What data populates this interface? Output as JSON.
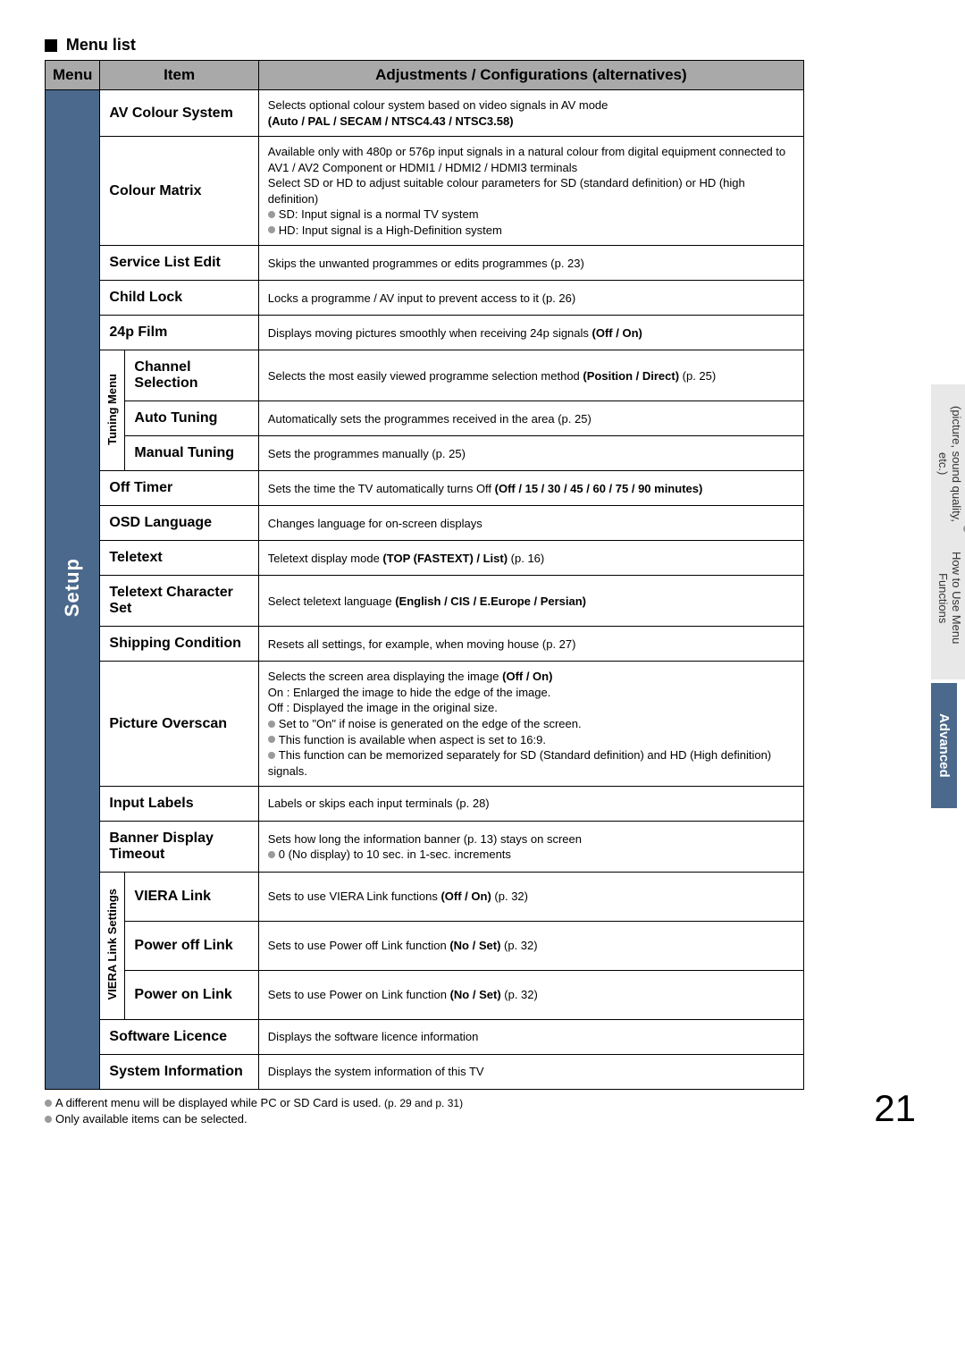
{
  "title": "Menu list",
  "header": {
    "menu": "Menu",
    "item": "Item",
    "adj": "Adjustments / Configurations (alternatives)"
  },
  "menu_label": "Setup",
  "groups": {
    "tuning": "Tuning Menu",
    "viera": "VIERA Link Settings"
  },
  "rows": {
    "av_colour": {
      "item": "AV Colour System",
      "desc": "Selects optional colour system based on video signals in AV mode<br><b>(Auto / PAL / SECAM / NTSC4.43 / NTSC3.58)</b>"
    },
    "colour_matrix": {
      "item": "Colour Matrix",
      "desc": "Available only with 480p or 576p input signals in a natural colour from digital equipment connected to AV1 / AV2 Component or HDMI1 / HDMI2 / HDMI3 terminals<br>Select SD or HD to adjust suitable colour parameters for SD (standard definition) or HD (high definition)<br><span class='bullet'></span>SD: Input signal is a normal TV system<br><span class='bullet'></span>HD: Input signal is a High-Definition system"
    },
    "service_list": {
      "item": "Service List Edit",
      "desc": "Skips the unwanted programmes or edits programmes (p. 23)"
    },
    "child_lock": {
      "item": "Child Lock",
      "desc": "Locks a programme / AV input to prevent access to it (p. 26)"
    },
    "film24p": {
      "item": "24p Film",
      "desc": "Displays moving pictures smoothly when receiving 24p signals <b>(Off / On)</b>"
    },
    "ch_sel": {
      "item": "Channel Selection",
      "desc": "Selects the most easily viewed programme selection method <b>(Position / Direct)</b> (p. 25)"
    },
    "auto_tuning": {
      "item": "Auto Tuning",
      "desc": "Automatically sets the programmes received in the area (p. 25)"
    },
    "manual_tuning": {
      "item": "Manual Tuning",
      "desc": "Sets the programmes manually (p. 25)"
    },
    "off_timer": {
      "item": "Off Timer",
      "desc": "Sets the time the TV automatically turns Off <b>(Off / 15 / 30 / 45 / 60 / 75 / 90 minutes)</b>"
    },
    "osd_lang": {
      "item": "OSD Language",
      "desc": "Changes language for on-screen displays"
    },
    "teletext": {
      "item": "Teletext",
      "desc": "Teletext display mode <b>(TOP (FASTEXT) / List)</b> (p. 16)"
    },
    "teletext_cs": {
      "item": "Teletext Character Set",
      "desc": "Select teletext language <b>(English / CIS / E.Europe / Persian)</b>"
    },
    "shipping": {
      "item": "Shipping Condition",
      "desc": "Resets all settings, for example, when moving house (p. 27)"
    },
    "pic_overscan": {
      "item": "Picture Overscan",
      "desc": "Selects the screen area displaying the image <b>(Off / On)</b><br>On : Enlarged the image to hide the edge of the image.<br>Off : Displayed the image in the original size.<br><span class='bullet'></span>Set to \"On\" if noise is generated on the edge of the screen.<br><span class='bullet'></span>This function is available when aspect is set to 16:9.<br><span class='bullet'></span>This function can be memorized separately for SD (Standard definition) and HD (High definition) signals."
    },
    "input_labels": {
      "item": "Input Labels",
      "desc": "Labels or skips each input terminals (p. 28)"
    },
    "banner": {
      "item": "Banner Display Timeout",
      "desc": "Sets how long the information banner (p. 13) stays on screen<br><span class='bullet'></span>0 (No display) to 10 sec. in 1-sec. increments"
    },
    "viera_link": {
      "item": "VIERA Link",
      "desc": "Sets to use VIERA Link functions <b>(Off / On)</b> (p. 32)"
    },
    "power_off": {
      "item": "Power off Link",
      "desc": "Sets to use Power off Link function <b>(No / Set)</b> (p. 32)"
    },
    "power_on": {
      "item": "Power on Link",
      "desc": "Sets to use Power on Link function <b>(No / Set)</b> (p. 32)"
    },
    "sw_licence": {
      "item": "Software Licence",
      "desc": "Displays the software licence information"
    },
    "sys_info": {
      "item": "System Information",
      "desc": "Displays the system information of this TV"
    }
  },
  "footnote1": "A different menu will be displayed while PC or SD Card is used.",
  "footnote1_sm": " (p. 29 and p. 31)",
  "footnote2": "Only available items can be selected.",
  "page_num": "21",
  "side_tab1a": "How to Use Menu Functions",
  "side_tab1b": "(picture, sound quality, etc.)",
  "side_tab2": "Advanced"
}
